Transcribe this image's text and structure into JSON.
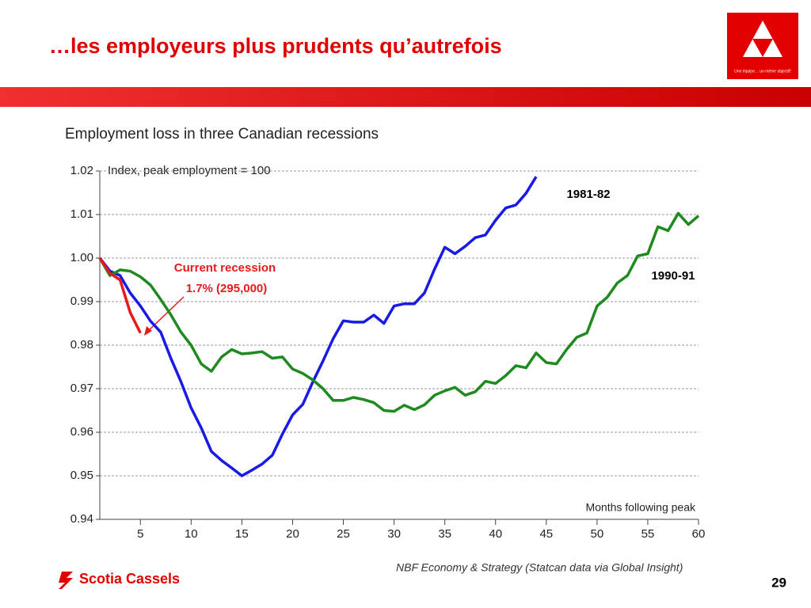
{
  "slide": {
    "title": "…les employeurs plus prudents qu’autrefois",
    "logo_tagline": "Une équipe… un même objectif!",
    "brand": "Scotia Cassels",
    "source": "NBF Economy & Strategy (Statcan data via Global Insight)",
    "page": "29"
  },
  "chart_data": {
    "type": "line",
    "title": "Employment loss in three Canadian recessions",
    "y_label": "Index, peak employment = 100",
    "x_label": "Months following peak",
    "xlim": [
      1,
      60
    ],
    "xticks": [
      5,
      10,
      15,
      20,
      25,
      30,
      35,
      40,
      45,
      50,
      55,
      60
    ],
    "ylim": [
      0.94,
      1.02
    ],
    "yticks": [
      0.94,
      0.95,
      0.96,
      0.97,
      0.98,
      0.99,
      {
        "value": 1,
        "label": "1.00"
      },
      1.01,
      1.02
    ],
    "grid": true,
    "series": [
      {
        "name": "1981-82",
        "color": "#1a1ae6",
        "x": [
          1,
          2,
          3,
          4,
          5,
          6,
          7,
          8,
          9,
          10,
          11,
          12,
          13,
          14,
          15,
          16,
          17,
          18,
          19,
          20,
          21,
          22,
          23,
          24,
          25,
          26,
          27,
          28,
          29,
          30,
          31,
          32,
          33,
          34,
          35,
          36,
          37,
          38,
          39,
          40,
          41,
          42,
          43,
          44
        ],
        "values": [
          1.0,
          0.997,
          0.996,
          0.992,
          0.989,
          0.9855,
          0.983,
          0.977,
          0.9716,
          0.9656,
          0.961,
          0.9556,
          0.9535,
          0.9518,
          0.95,
          0.9513,
          0.9527,
          0.9547,
          0.9596,
          0.964,
          0.9664,
          0.9716,
          0.9764,
          0.9815,
          0.9856,
          0.9853,
          0.9853,
          0.9869,
          0.985,
          0.989,
          0.9895,
          0.9895,
          0.992,
          0.9975,
          1.0025,
          1.001,
          1.0027,
          1.0047,
          1.0053,
          1.0087,
          1.0115,
          1.0122,
          1.0149,
          1.0187
        ]
      },
      {
        "name": "1990-91",
        "color": "#1f8a1f",
        "x": [
          1,
          2,
          3,
          4,
          5,
          6,
          7,
          8,
          9,
          10,
          11,
          12,
          13,
          14,
          15,
          16,
          17,
          18,
          19,
          20,
          21,
          22,
          23,
          24,
          25,
          26,
          27,
          28,
          29,
          30,
          31,
          32,
          33,
          34,
          35,
          36,
          37,
          38,
          39,
          40,
          41,
          42,
          43,
          44,
          45,
          46,
          47,
          48,
          49,
          50,
          51,
          52,
          53,
          54,
          55,
          56,
          57,
          58,
          59,
          60
        ],
        "values": [
          1.0,
          0.996,
          0.9973,
          0.997,
          0.9957,
          0.9938,
          0.9905,
          0.987,
          0.983,
          0.98,
          0.9757,
          0.974,
          0.9773,
          0.979,
          0.978,
          0.9782,
          0.9785,
          0.977,
          0.9773,
          0.9745,
          0.9735,
          0.972,
          0.97,
          0.9673,
          0.9673,
          0.968,
          0.9675,
          0.9668,
          0.965,
          0.9648,
          0.9662,
          0.9652,
          0.9663,
          0.9685,
          0.9695,
          0.9703,
          0.9685,
          0.9693,
          0.9717,
          0.9712,
          0.973,
          0.9753,
          0.9748,
          0.9782,
          0.976,
          0.9757,
          0.979,
          0.9818,
          0.9828,
          0.989,
          0.991,
          0.9943,
          0.996,
          1.0005,
          1.001,
          1.0072,
          1.0063,
          1.0103,
          1.0077,
          1.0097
        ]
      },
      {
        "name": "Current recession",
        "annotation": "1.7% (295,000)",
        "color": "#e61a1a",
        "x": [
          1,
          2,
          3,
          4,
          5
        ],
        "values": [
          1.0,
          0.9965,
          0.995,
          0.9875,
          0.9828
        ]
      }
    ]
  }
}
